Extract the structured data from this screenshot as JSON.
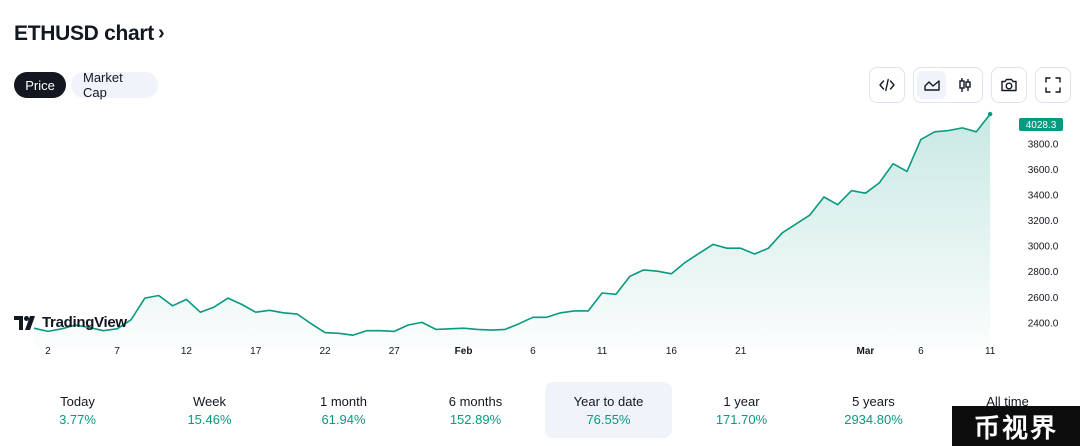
{
  "header": {
    "title": "ETHUSD chart",
    "chevron": "›"
  },
  "tabs": {
    "price": "Price",
    "market_cap": "Market Cap"
  },
  "toolbar": {
    "embed_icon": "code-embed-icon",
    "area_icon": "area-chart-icon",
    "candle_icon": "candlestick-icon",
    "camera_icon": "camera-icon",
    "fullscreen_icon": "fullscreen-icon"
  },
  "brand": {
    "logo_text": "TradingView"
  },
  "periods": [
    {
      "label": "Today",
      "value": "3.77%"
    },
    {
      "label": "Week",
      "value": "15.46%"
    },
    {
      "label": "1 month",
      "value": "61.94%"
    },
    {
      "label": "6 months",
      "value": "152.89%"
    },
    {
      "label": "Year to date",
      "value": "76.55%",
      "active": true
    },
    {
      "label": "1 year",
      "value": "171.70%"
    },
    {
      "label": "5 years",
      "value": "2934.80%"
    },
    {
      "label": "All time",
      "value": ""
    }
  ],
  "watermark": {
    "text": "币视界"
  },
  "colors": {
    "line": "#089981",
    "positive": "#089981",
    "dark": "#131722"
  },
  "chart_data": {
    "type": "area",
    "title": "",
    "xlabel": "",
    "ylabel": "",
    "x_tick_labels": [
      "2",
      "7",
      "12",
      "17",
      "22",
      "27",
      "Feb",
      "6",
      "11",
      "16",
      "21",
      "Mar",
      "6",
      "11"
    ],
    "x_tick_days": [
      2,
      7,
      12,
      17,
      22,
      27,
      32,
      37,
      42,
      47,
      52,
      61,
      65,
      70
    ],
    "y_ticks": [
      2400,
      2600,
      2800,
      3000,
      3200,
      3400,
      3600,
      3800
    ],
    "y_tick_labels": [
      "2400.0",
      "2600.0",
      "2800.0",
      "3000.0",
      "3200.0",
      "3400.0",
      "3600.0",
      "3800.0"
    ],
    "last_value_label": "4028.3",
    "ylim": [
      2200,
      4060
    ],
    "xlim": [
      1,
      71
    ],
    "grid": false,
    "series": [
      {
        "x": [
          1,
          2,
          3,
          4,
          5,
          6,
          7,
          8,
          9,
          10,
          11,
          12,
          13,
          14,
          15,
          16,
          17,
          18,
          19,
          20,
          21,
          22,
          23,
          24,
          25,
          26,
          27,
          28,
          29,
          30,
          31,
          32,
          33,
          34,
          35,
          36,
          37,
          38,
          39,
          40,
          41,
          42,
          43,
          44,
          45,
          46,
          47,
          48,
          49,
          50,
          51,
          52,
          53,
          54,
          55,
          56,
          57,
          58,
          59,
          60,
          61,
          62,
          63,
          64,
          65,
          66,
          67,
          68,
          69,
          70
        ],
        "values": [
          2355,
          2330,
          2350,
          2380,
          2360,
          2335,
          2350,
          2420,
          2590,
          2610,
          2530,
          2580,
          2480,
          2520,
          2590,
          2540,
          2480,
          2495,
          2475,
          2465,
          2390,
          2320,
          2315,
          2300,
          2335,
          2335,
          2330,
          2380,
          2400,
          2345,
          2350,
          2355,
          2345,
          2340,
          2345,
          2390,
          2440,
          2440,
          2475,
          2490,
          2490,
          2630,
          2620,
          2760,
          2810,
          2800,
          2780,
          2870,
          2940,
          3010,
          2980,
          2980,
          2935,
          2980,
          3100,
          3170,
          3240,
          3380,
          3320,
          3430,
          3410,
          3490,
          3640,
          3580,
          3830,
          3890,
          3900,
          3920,
          3890,
          4028.3
        ]
      }
    ]
  }
}
